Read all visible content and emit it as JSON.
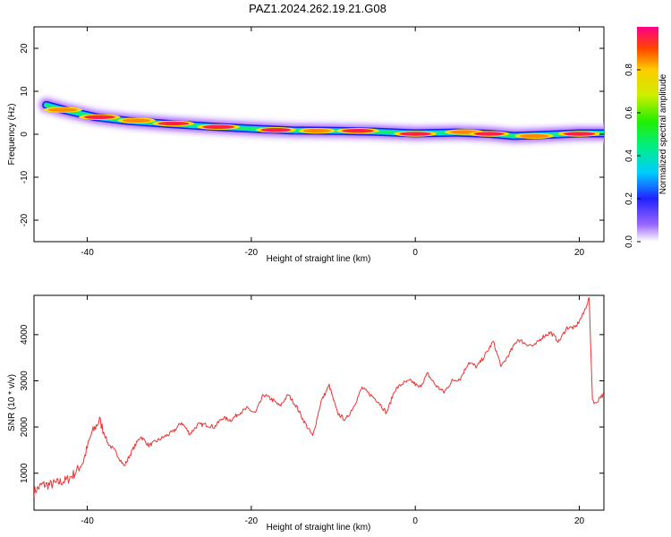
{
  "title": "PAZ1.2024.262.19.21.G08",
  "chart_data": [
    {
      "type": "heatmap",
      "xlabel": "Height of straight line (km)",
      "ylabel": "Frequency (Hz)",
      "xlim": [
        -46.5,
        23
      ],
      "ylim": [
        -25,
        25
      ],
      "xticks": [
        -40,
        -20,
        0,
        20
      ],
      "yticks": [
        -20,
        -10,
        0,
        10,
        20
      ],
      "colorbar": {
        "label": "Normalized spectral amplitude",
        "range": [
          0,
          1
        ],
        "ticks": [
          "0.0",
          "0.2",
          "0.4",
          "0.6",
          "0.8"
        ]
      },
      "ridge": [
        {
          "x": -45.0,
          "f": 6.8
        },
        {
          "x": -42.5,
          "f": 5.5
        },
        {
          "x": -39.0,
          "f": 4.0
        },
        {
          "x": -35.0,
          "f": 3.1
        },
        {
          "x": -30.0,
          "f": 2.4
        },
        {
          "x": -25.0,
          "f": 1.8
        },
        {
          "x": -20.0,
          "f": 1.3
        },
        {
          "x": -15.0,
          "f": 0.9
        },
        {
          "x": -10.0,
          "f": 0.8
        },
        {
          "x": -5.0,
          "f": 0.6
        },
        {
          "x": 0.0,
          "f": 0.2
        },
        {
          "x": 5.0,
          "f": 0.4
        },
        {
          "x": 9.0,
          "f": 0.1
        },
        {
          "x": 12.0,
          "f": -0.4
        },
        {
          "x": 15.0,
          "f": -0.2
        },
        {
          "x": 20.0,
          "f": 0.2
        },
        {
          "x": 23.0,
          "f": 0.2
        }
      ],
      "peaks": [
        {
          "x": -43.0,
          "f": 5.7,
          "amp": 0.85
        },
        {
          "x": -38.5,
          "f": 4.0,
          "amp": 0.95
        },
        {
          "x": -34.0,
          "f": 3.2,
          "amp": 0.8
        },
        {
          "x": -29.5,
          "f": 2.5,
          "amp": 0.95
        },
        {
          "x": -24.0,
          "f": 1.7,
          "amp": 1.0
        },
        {
          "x": -17.0,
          "f": 1.0,
          "amp": 0.9
        },
        {
          "x": -12.0,
          "f": 0.8,
          "amp": 0.75
        },
        {
          "x": -7.0,
          "f": 0.8,
          "amp": 1.0
        },
        {
          "x": 0.0,
          "f": 0.1,
          "amp": 1.0
        },
        {
          "x": 6.0,
          "f": 0.5,
          "amp": 0.85
        },
        {
          "x": 9.0,
          "f": 0.1,
          "amp": 0.9
        },
        {
          "x": 14.5,
          "f": -0.4,
          "amp": 0.85
        },
        {
          "x": 20.0,
          "f": 0.1,
          "amp": 1.0
        }
      ]
    },
    {
      "type": "line",
      "xlabel": "Height of straight line (km)",
      "ylabel": "SNR (10 * v/v)",
      "xlim": [
        -46.5,
        23
      ],
      "ylim": [
        200,
        4850
      ],
      "xticks": [
        -40,
        -20,
        0,
        20
      ],
      "yticks": [
        1000,
        2000,
        3000,
        4000
      ],
      "series": [
        {
          "color": "#ee3333",
          "x": [
            -46.5,
            -45.5,
            -44.5,
            -43.5,
            -42.5,
            -41.5,
            -40.5,
            -39.5,
            -38.5,
            -37.5,
            -36.5,
            -35.5,
            -34.5,
            -33.5,
            -32.5,
            -31.5,
            -30.5,
            -29.5,
            -28.5,
            -27.5,
            -26.5,
            -25.5,
            -24.5,
            -23.5,
            -22.5,
            -21.5,
            -20.5,
            -19.5,
            -18.5,
            -17.5,
            -16.5,
            -15.5,
            -14.5,
            -13.5,
            -12.5,
            -11.5,
            -10.5,
            -9.5,
            -8.5,
            -7.5,
            -6.5,
            -5.5,
            -4.5,
            -3.5,
            -2.5,
            -1.5,
            -0.5,
            0.5,
            1.5,
            2.5,
            3.5,
            4.5,
            5.5,
            6.5,
            7.5,
            8.5,
            9.5,
            10.5,
            11.5,
            12.5,
            13.5,
            14.5,
            15.5,
            16.5,
            17.5,
            18.5,
            19.5,
            20.5,
            21.2,
            21.6,
            22.0,
            22.5,
            23.0
          ],
          "y": [
            600,
            750,
            750,
            800,
            850,
            1000,
            1250,
            1850,
            2150,
            1650,
            1450,
            1150,
            1500,
            1800,
            1600,
            1700,
            1800,
            1900,
            2100,
            1850,
            2050,
            2050,
            2000,
            2200,
            2150,
            2300,
            2400,
            2300,
            2700,
            2600,
            2450,
            2700,
            2450,
            2100,
            1800,
            2550,
            2900,
            2300,
            2150,
            2450,
            2850,
            2700,
            2550,
            2300,
            2800,
            2950,
            3000,
            2850,
            3150,
            2900,
            2750,
            3000,
            3050,
            3400,
            3300,
            3550,
            3850,
            3300,
            3600,
            3900,
            3800,
            3750,
            3950,
            4050,
            3850,
            4150,
            4150,
            4450,
            4800,
            2600,
            2500,
            2650,
            2700
          ]
        }
      ]
    }
  ]
}
